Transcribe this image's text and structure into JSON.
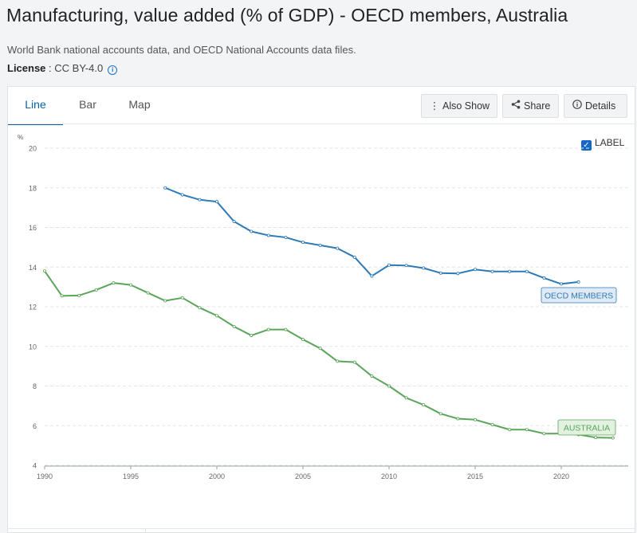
{
  "header": {
    "title": "Manufacturing, value added (% of GDP) - OECD members, Australia",
    "source": "World Bank national accounts data, and OECD National Accounts data files.",
    "license_label": "License",
    "license_value": " : CC BY-4.0"
  },
  "tabs": [
    {
      "label": "Line",
      "active": true
    },
    {
      "label": "Bar",
      "active": false
    },
    {
      "label": "Map",
      "active": false
    }
  ],
  "toolbar": {
    "also_show": "Also Show",
    "share": "Share",
    "details": "Details"
  },
  "label_toggle": {
    "label": "LABEL",
    "checked": true
  },
  "chart_data": {
    "type": "line",
    "ylabel": "%",
    "ylim": [
      4,
      20
    ],
    "yticks": [
      4,
      6,
      8,
      10,
      12,
      14,
      16,
      18,
      20
    ],
    "xlim": [
      1990,
      2024
    ],
    "xticks": [
      1990,
      1995,
      2000,
      2005,
      2010,
      2015,
      2020
    ],
    "grid": true,
    "series": [
      {
        "name": "OECD MEMBERS",
        "color": "#2e7ab6",
        "label_bg": "#dfeaf5",
        "x": [
          1997,
          1998,
          1999,
          2000,
          2001,
          2002,
          2003,
          2004,
          2005,
          2006,
          2007,
          2008,
          2009,
          2010,
          2011,
          2012,
          2013,
          2014,
          2015,
          2016,
          2017,
          2018,
          2019,
          2020,
          2021
        ],
        "values": [
          18.0,
          17.65,
          17.4,
          17.3,
          16.3,
          15.8,
          15.6,
          15.5,
          15.25,
          15.1,
          14.95,
          14.5,
          13.55,
          14.1,
          14.08,
          13.95,
          13.7,
          13.68,
          13.88,
          13.78,
          13.78,
          13.78,
          13.45,
          13.15,
          13.25
        ]
      },
      {
        "name": "AUSTRALIA",
        "color": "#5ba55b",
        "label_bg": "#e3f1e0",
        "x": [
          1990,
          1991,
          1992,
          1993,
          1994,
          1995,
          1996,
          1997,
          1998,
          1999,
          2000,
          2001,
          2002,
          2003,
          2004,
          2005,
          2006,
          2007,
          2008,
          2009,
          2010,
          2011,
          2012,
          2013,
          2014,
          2015,
          2016,
          2017,
          2018,
          2019,
          2020,
          2021,
          2022,
          2023
        ],
        "values": [
          13.8,
          12.55,
          12.57,
          12.85,
          13.2,
          13.1,
          12.7,
          12.3,
          12.45,
          11.95,
          11.55,
          11.0,
          10.55,
          10.85,
          10.85,
          10.35,
          9.9,
          9.25,
          9.2,
          8.5,
          8.0,
          7.4,
          7.05,
          6.6,
          6.35,
          6.3,
          6.05,
          5.8,
          5.8,
          5.6,
          5.6,
          5.55,
          5.4,
          5.38
        ]
      }
    ]
  }
}
